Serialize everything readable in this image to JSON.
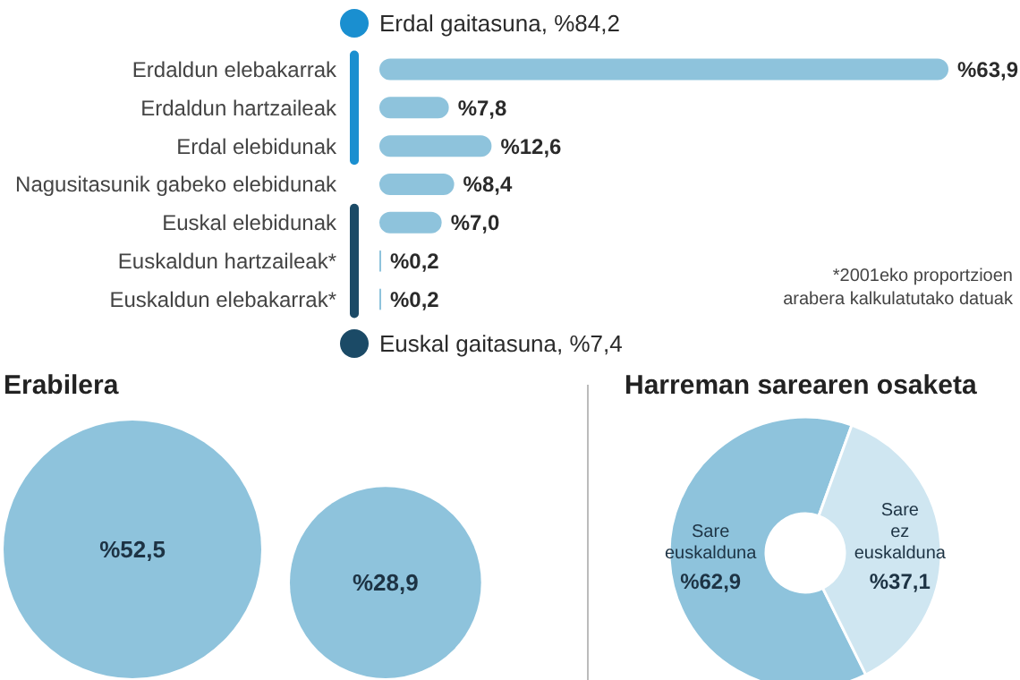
{
  "chart_data": [
    {
      "type": "bar",
      "orientation": "horizontal",
      "categories": [
        "Erdaldun elebakarrak",
        "Erdaldun hartzaileak",
        "Erdal elebidunak",
        "Nagusitasunik gabeko elebidunak",
        "Euskal elebidunak",
        "Euskaldun hartzaileak*",
        "Euskaldun elebakarrak*"
      ],
      "values": [
        63.9,
        7.8,
        12.6,
        8.4,
        7.0,
        0.2,
        0.2
      ],
      "value_labels": [
        "%63,9",
        "%7,8",
        "%12,6",
        "%8,4",
        "%7,0",
        "%0,2",
        "%0,2"
      ],
      "color": "#8ec3dc",
      "annotations": [
        "Erdal gaitasuna, %84,2",
        "Euskal gaitasuna, %7,4",
        "*2001eko proportzioen arabera kalkulatutako datuak"
      ]
    },
    {
      "type": "other",
      "title": "Erabilera",
      "values": [
        52.5,
        28.9
      ],
      "value_labels": [
        "%52,5",
        "%28,9"
      ],
      "color": "#8ec3dc"
    },
    {
      "type": "donut",
      "title": "Harreman sarearen osaketa",
      "categories": [
        "Sare euskalduna",
        "Sare ez euskalduna"
      ],
      "values": [
        62.9,
        37.1
      ],
      "value_labels": [
        "%62,9",
        "%37,1"
      ],
      "colors": [
        "#8ec3dc",
        "#cfe6f1"
      ]
    }
  ]
}
